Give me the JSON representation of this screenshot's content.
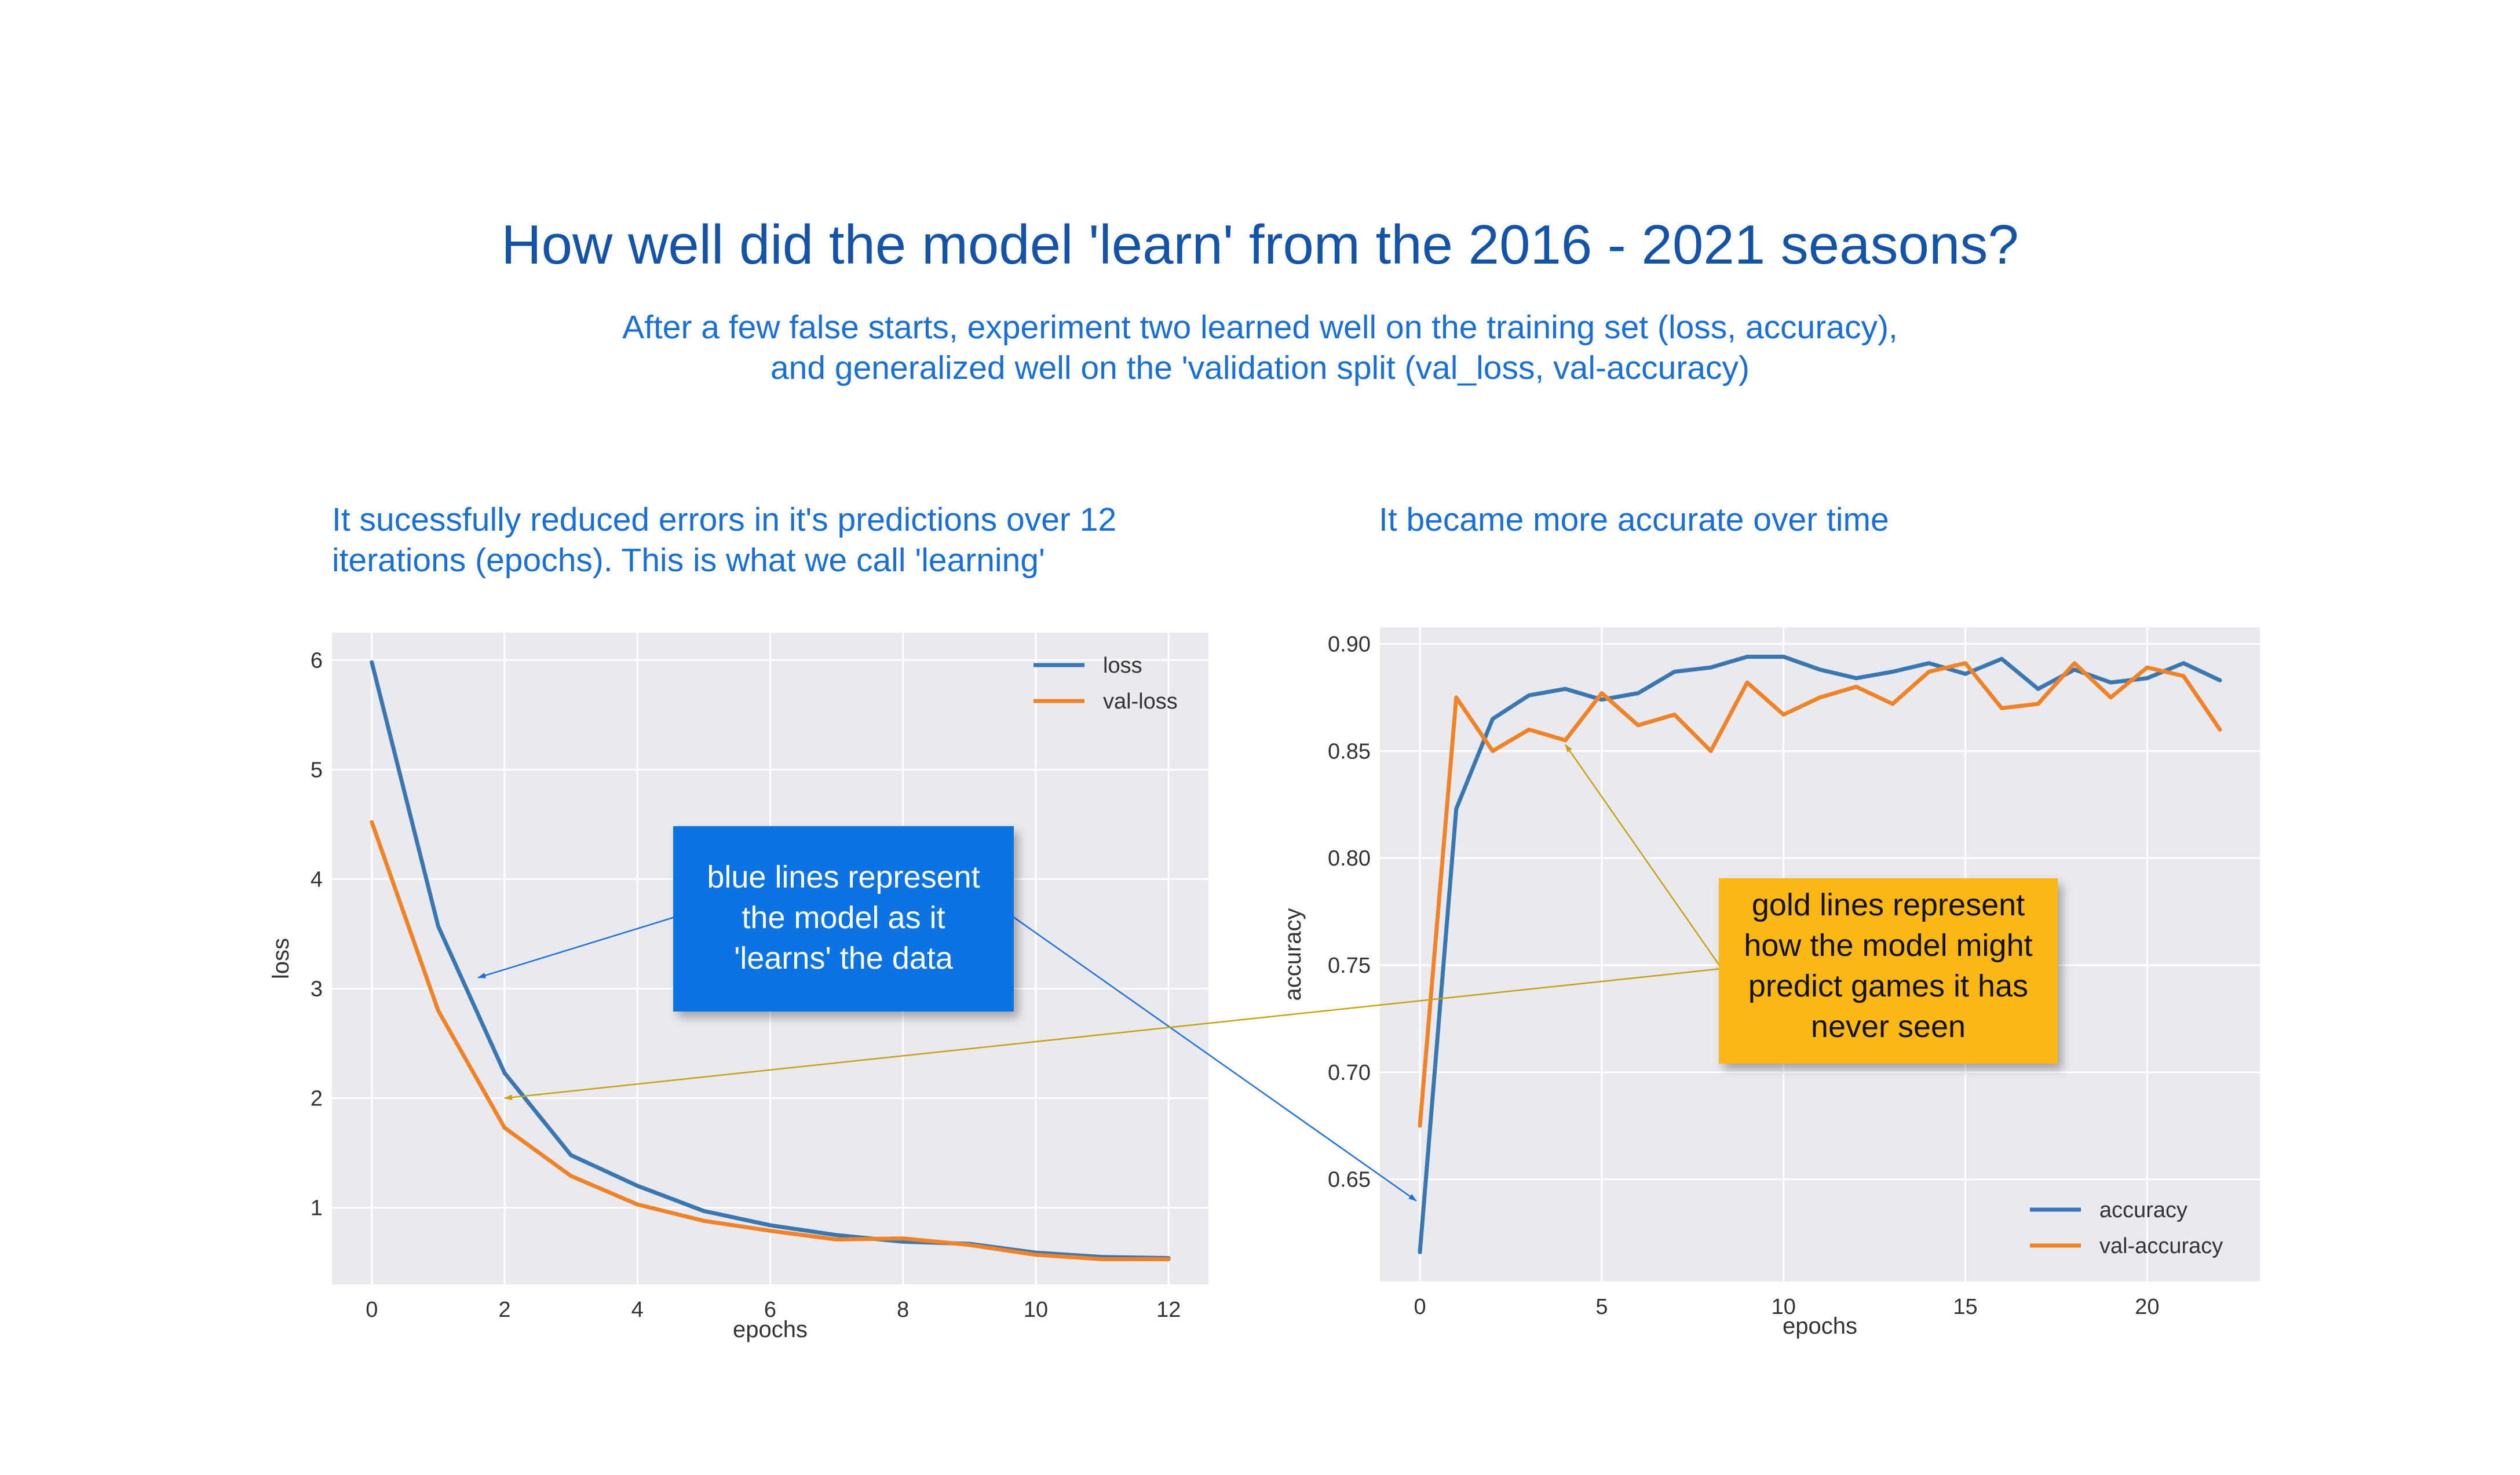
{
  "title": "How well did the model 'learn' from the 2016 - 2021 seasons?",
  "subtitle_lines": [
    "After a few false starts, experiment two learned well on the training set (loss, accuracy),",
    "and generalized well on the 'validation split (val_loss, val-accuracy)"
  ],
  "loss_caption_lines": [
    "It sucessfully reduced errors in it's predictions over 12",
    "iterations (epochs).  This is what we call 'learning'"
  ],
  "accuracy_caption": "It became more accurate over time",
  "callouts": {
    "blue": {
      "lines": [
        "blue lines represent",
        "the model as it",
        "'learns' the data"
      ],
      "fill": "#1173e2",
      "text_color": "#ffffff"
    },
    "gold": {
      "lines": [
        "gold lines represent",
        "how the model might",
        "predict games it has",
        "never seen"
      ],
      "fill": "#fbb715",
      "text_color": "#111111"
    }
  },
  "colors": {
    "blue_series": "#3a76b0",
    "orange_series": "#f08328",
    "plot_background": "#e9e9f0",
    "grid": "#ffffff",
    "blue_arrow": "#1f6fd8",
    "gold_arrow": "#c9a10d"
  },
  "chart_data": [
    {
      "type": "line",
      "xlabel": "epochs",
      "ylabel": "loss",
      "xlim": [
        -0.6,
        12.6
      ],
      "ylim": [
        0.3,
        6.25
      ],
      "xticks": [
        0,
        2,
        4,
        6,
        8,
        10,
        12
      ],
      "yticks": [
        1,
        2,
        3,
        4,
        5,
        6
      ],
      "ytick_labels": [
        "1",
        "2",
        "3",
        "4",
        "5",
        "6"
      ],
      "grid": true,
      "legend": "top-right",
      "x": [
        0,
        1,
        2,
        3,
        4,
        5,
        6,
        7,
        8,
        9,
        10,
        11,
        12
      ],
      "series": [
        {
          "name": "loss",
          "values": [
            5.98,
            3.57,
            2.23,
            1.48,
            1.2,
            0.97,
            0.84,
            0.75,
            0.69,
            0.67,
            0.59,
            0.55,
            0.54
          ]
        },
        {
          "name": "val-loss",
          "values": [
            4.52,
            2.8,
            1.73,
            1.29,
            1.03,
            0.88,
            0.79,
            0.71,
            0.72,
            0.66,
            0.57,
            0.53,
            0.53
          ]
        }
      ]
    },
    {
      "type": "line",
      "xlabel": "epochs",
      "ylabel": "accuracy",
      "xlim": [
        -1.1,
        23.1
      ],
      "ylim": [
        0.6023,
        0.9077
      ],
      "xticks": [
        0,
        5,
        10,
        15,
        20
      ],
      "yticks": [
        0.65,
        0.7,
        0.75,
        0.8,
        0.85,
        0.9
      ],
      "ytick_labels": [
        "0.65",
        "0.70",
        "0.75",
        "0.80",
        "0.85",
        "0.90"
      ],
      "grid": true,
      "legend": "bottom-right",
      "x": [
        0,
        1,
        2,
        3,
        4,
        5,
        6,
        7,
        8,
        9,
        10,
        11,
        12,
        13,
        14,
        15,
        16,
        17,
        18,
        19,
        20,
        21,
        22
      ],
      "series": [
        {
          "name": "accuracy",
          "values": [
            0.616,
            0.823,
            0.865,
            0.876,
            0.879,
            0.874,
            0.877,
            0.887,
            0.889,
            0.894,
            0.894,
            0.888,
            0.884,
            0.887,
            0.891,
            0.886,
            0.893,
            0.879,
            0.888,
            0.882,
            0.884,
            0.891,
            0.883
          ]
        },
        {
          "name": "val-accuracy",
          "values": [
            0.675,
            0.875,
            0.85,
            0.86,
            0.855,
            0.877,
            0.862,
            0.867,
            0.85,
            0.882,
            0.867,
            0.875,
            0.88,
            0.872,
            0.887,
            0.891,
            0.87,
            0.872,
            0.891,
            0.875,
            0.889,
            0.885,
            0.86
          ]
        }
      ]
    }
  ]
}
